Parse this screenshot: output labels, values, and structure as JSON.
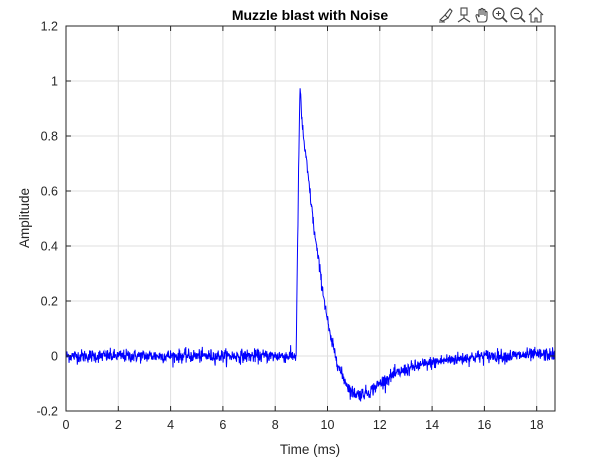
{
  "toolbar": {
    "icons": [
      "brush-data-icon",
      "datatip-icon",
      "pan-hand-icon",
      "zoom-in-icon",
      "zoom-out-icon",
      "home-restore-view-icon"
    ]
  },
  "chart_data": {
    "type": "line",
    "title": "Muzzle blast with Noise",
    "xlabel": "Time (ms)",
    "ylabel": "Amplitude",
    "xlim": [
      0,
      18.7
    ],
    "ylim": [
      -0.2,
      1.2
    ],
    "xticks": [
      0,
      2,
      4,
      6,
      8,
      10,
      12,
      14,
      16,
      18
    ],
    "yticks": [
      -0.2,
      0,
      0.2,
      0.4,
      0.6,
      0.8,
      1,
      1.2
    ],
    "xtick_labels": [
      "0",
      "2",
      "4",
      "6",
      "8",
      "10",
      "12",
      "14",
      "16",
      "18"
    ],
    "ytick_labels": [
      "-0.2",
      "0",
      "0.2",
      "0.4",
      "0.6",
      "0.8",
      "1",
      "1.2"
    ],
    "grid": true,
    "line_color": "#0000ff",
    "noise_amplitude": 0.012,
    "series": [
      {
        "x": [
          0,
          8.8,
          8.85,
          8.9,
          8.95,
          9.0,
          9.1,
          9.3,
          9.5,
          9.8,
          10.1,
          10.5,
          10.9,
          11.2,
          11.6,
          12.0,
          12.5,
          13.0,
          13.5,
          14.0,
          14.5,
          15.0,
          15.5,
          16.0,
          17.0,
          18.0,
          18.7
        ],
        "values": [
          0,
          0,
          0.35,
          0.7,
          0.99,
          0.88,
          0.78,
          0.62,
          0.45,
          0.25,
          0.07,
          -0.06,
          -0.13,
          -0.14,
          -0.13,
          -0.1,
          -0.07,
          -0.05,
          -0.035,
          -0.025,
          -0.015,
          -0.01,
          -0.005,
          0,
          0,
          0.005,
          0.005
        ]
      }
    ]
  },
  "colors": {
    "axes": "#262626",
    "grid": "#dfdfdf",
    "line": "#0000ff"
  }
}
